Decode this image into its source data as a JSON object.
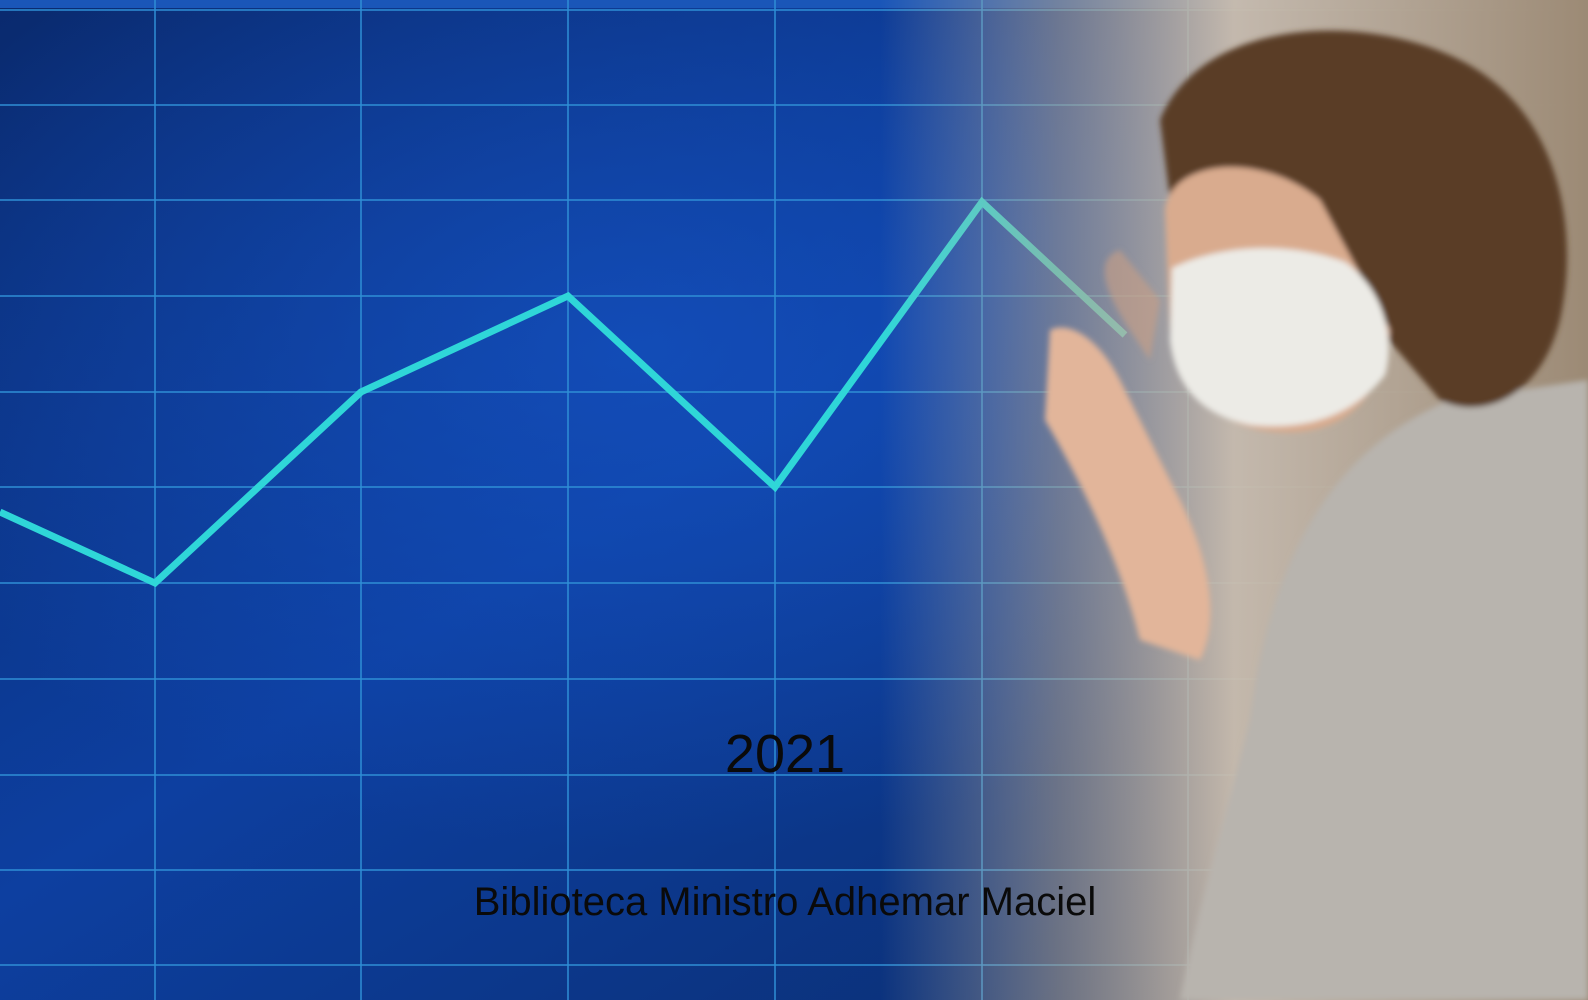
{
  "cover": {
    "year": "2021",
    "library": "Biblioteca Ministro Adhemar Maciel"
  }
}
